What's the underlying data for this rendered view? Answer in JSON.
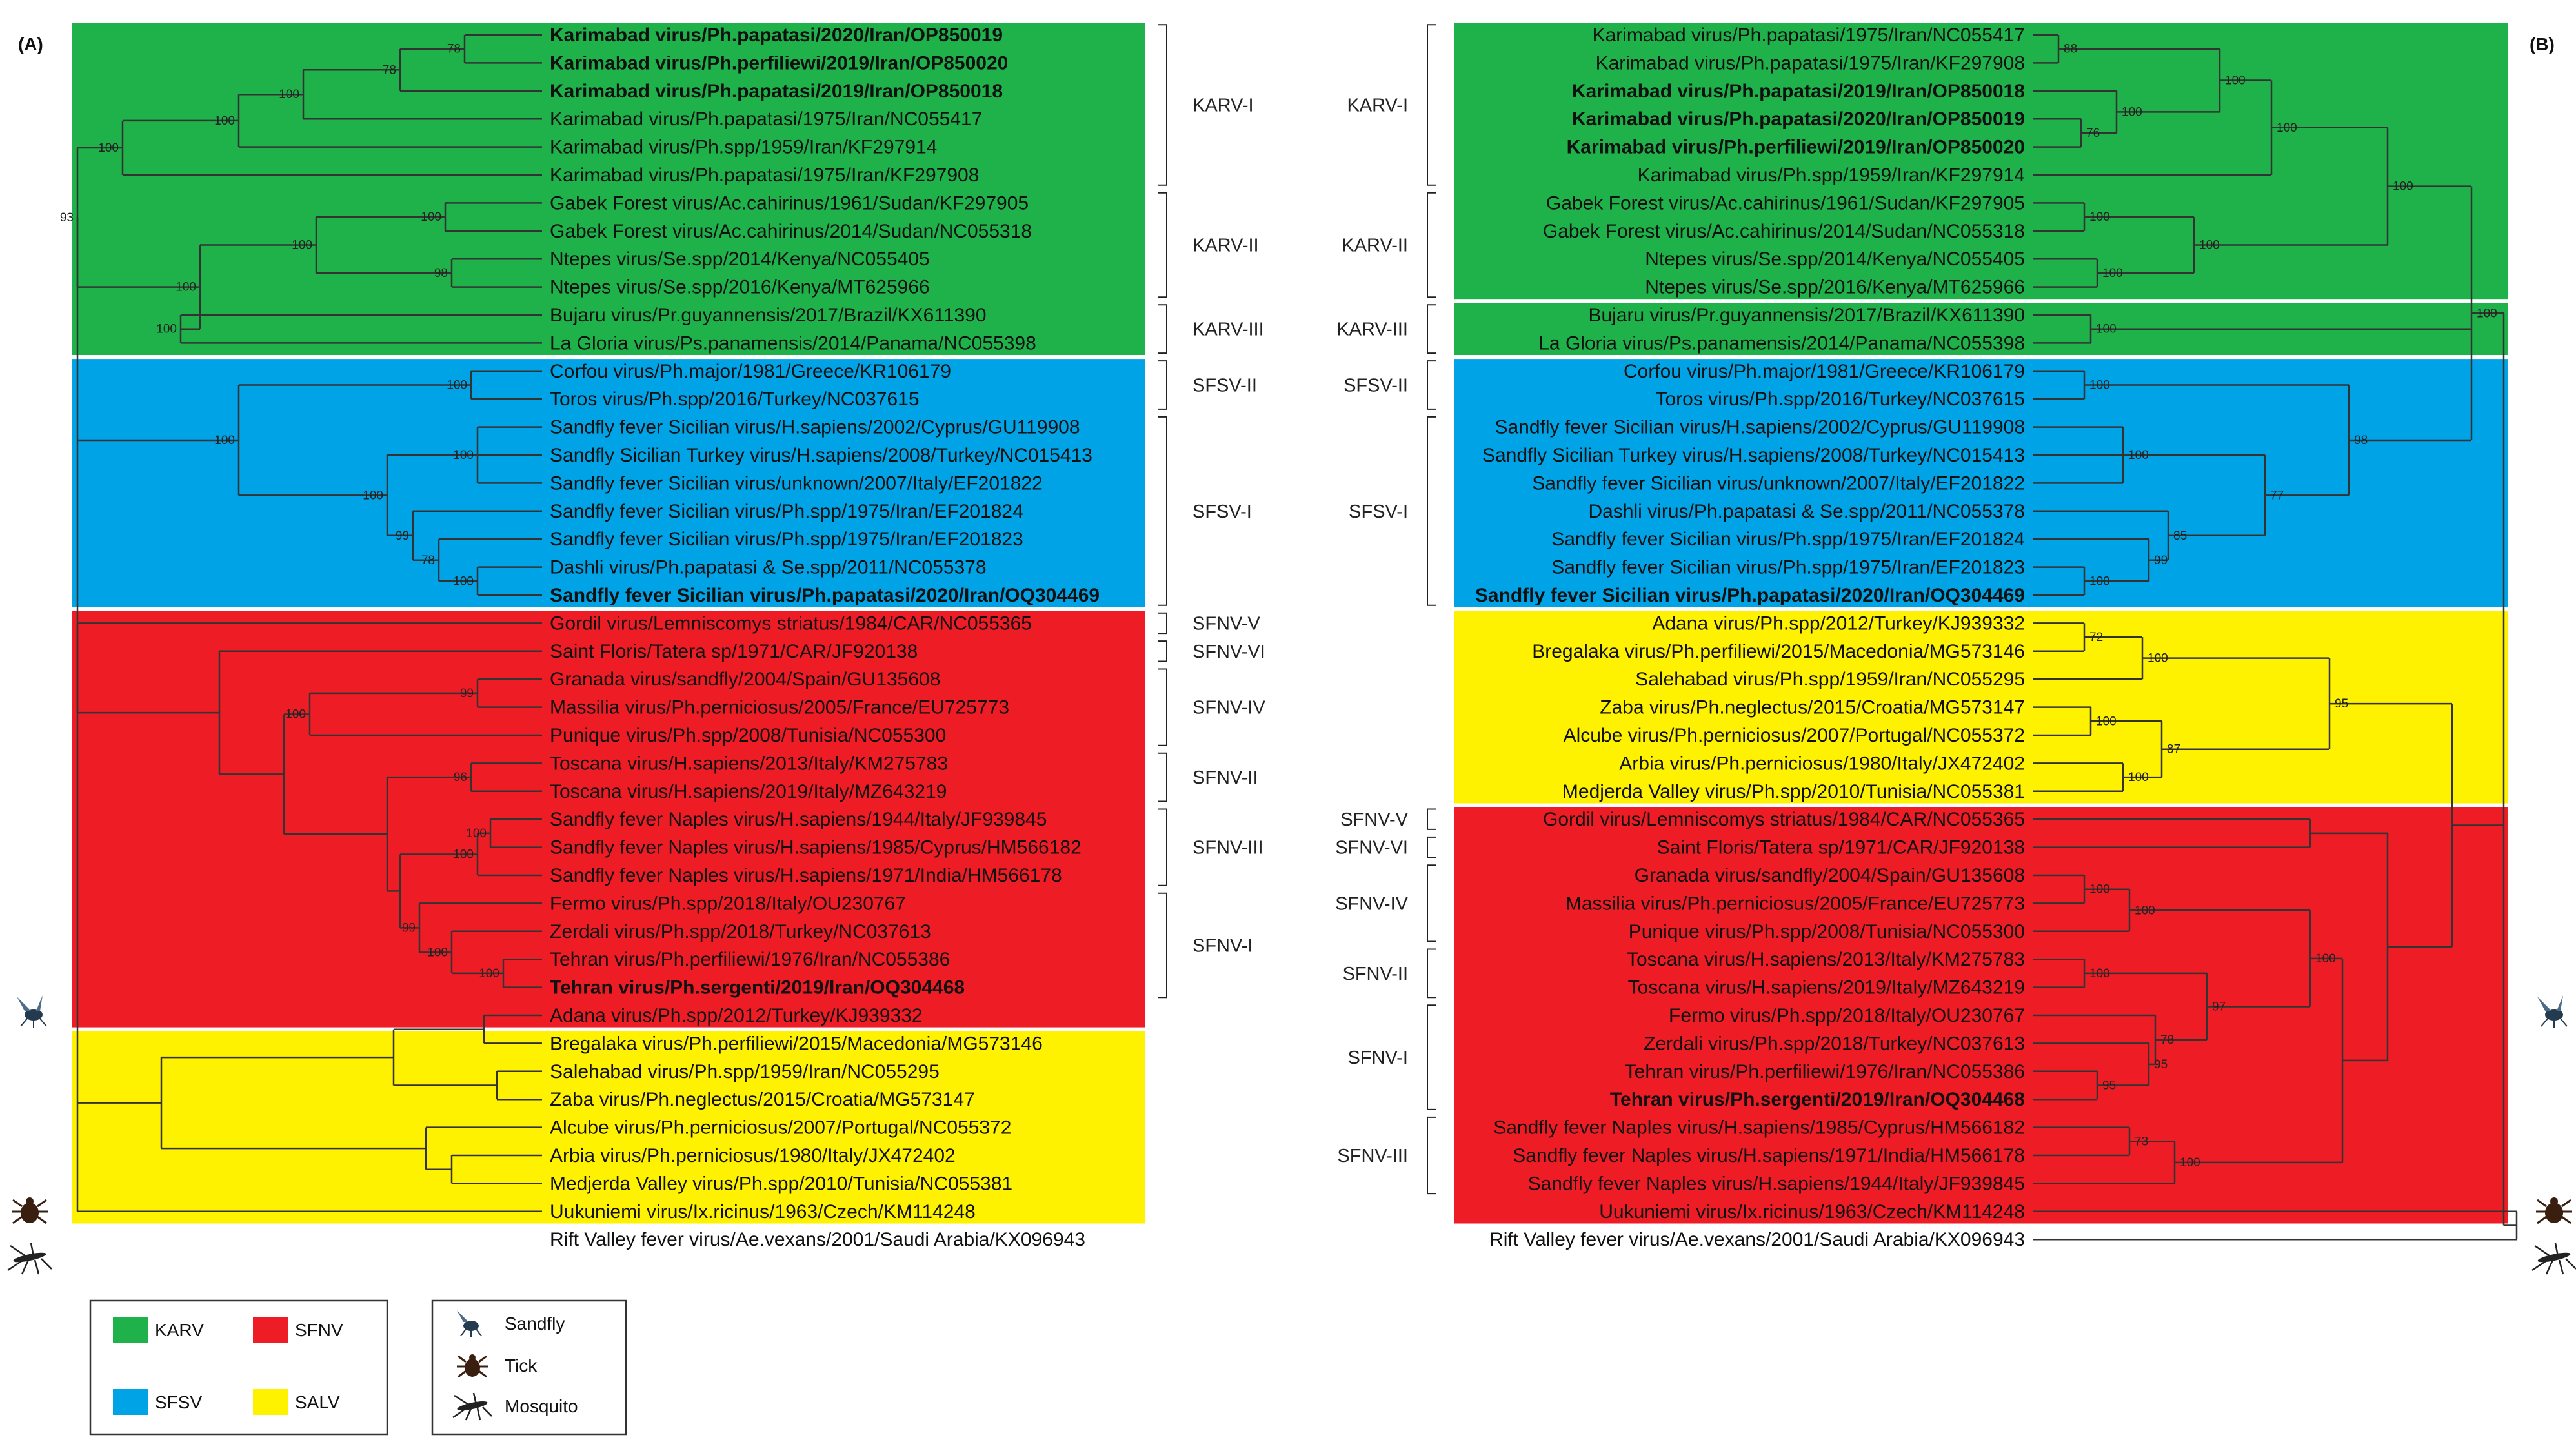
{
  "panels": [
    {
      "id": "A",
      "label": "(A)",
      "groups": [
        {
          "color": "#1fb24a",
          "from": 0,
          "to": 11
        },
        {
          "color": "#00a3e6",
          "from": 12,
          "to": 20
        },
        {
          "color": "#ee1c25",
          "from": 21,
          "to": 35
        },
        {
          "color": "#fff200",
          "from": 36,
          "to": 42
        }
      ],
      "clades": [
        {
          "label": "KARV-I",
          "from": 0,
          "to": 5
        },
        {
          "label": "KARV-II",
          "from": 6,
          "to": 9
        },
        {
          "label": "KARV-III",
          "from": 10,
          "to": 11
        },
        {
          "label": "SFSV-II",
          "from": 12,
          "to": 13
        },
        {
          "label": "SFSV-I",
          "from": 14,
          "to": 20
        },
        {
          "label": "SFNV-V",
          "from": 21,
          "to": 21
        },
        {
          "label": "SFNV-VI",
          "from": 22,
          "to": 22
        },
        {
          "label": "SFNV-IV",
          "from": 23,
          "to": 25
        },
        {
          "label": "SFNV-II",
          "from": 26,
          "to": 27
        },
        {
          "label": "SFNV-III",
          "from": 28,
          "to": 30
        },
        {
          "label": "SFNV-I",
          "from": 31,
          "to": 34
        }
      ],
      "taxa": [
        {
          "name": "Karimabad virus/Ph.papatasi/2020/Iran/OP850019",
          "bold": true
        },
        {
          "name": "Karimabad virus/Ph.perfiliewi/2019/Iran/OP850020",
          "bold": true
        },
        {
          "name": "Karimabad virus/Ph.papatasi/2019/Iran/OP850018",
          "bold": true
        },
        {
          "name": "Karimabad virus/Ph.papatasi/1975/Iran/NC055417",
          "bold": false
        },
        {
          "name": "Karimabad virus/Ph.spp/1959/Iran/KF297914",
          "bold": false
        },
        {
          "name": "Karimabad virus/Ph.papatasi/1975/Iran/KF297908",
          "bold": false
        },
        {
          "name": "Gabek Forest virus/Ac.cahirinus/1961/Sudan/KF297905",
          "bold": false
        },
        {
          "name": "Gabek Forest virus/Ac.cahirinus/2014/Sudan/NC055318",
          "bold": false
        },
        {
          "name": "Ntepes virus/Se.spp/2014/Kenya/NC055405",
          "bold": false
        },
        {
          "name": "Ntepes virus/Se.spp/2016/Kenya/MT625966",
          "bold": false
        },
        {
          "name": "Bujaru virus/Pr.guyannensis/2017/Brazil/KX611390",
          "bold": false
        },
        {
          "name": "La Gloria virus/Ps.panamensis/2014/Panama/NC055398",
          "bold": false
        },
        {
          "name": "Corfou virus/Ph.major/1981/Greece/KR106179",
          "bold": false
        },
        {
          "name": "Toros virus/Ph.spp/2016/Turkey/NC037615",
          "bold": false
        },
        {
          "name": "Sandfly fever Sicilian virus/H.sapiens/2002/Cyprus/GU119908",
          "bold": false
        },
        {
          "name": "Sandfly Sicilian Turkey virus/H.sapiens/2008/Turkey/NC015413",
          "bold": false
        },
        {
          "name": "Sandfly fever Sicilian virus/unknown/2007/Italy/EF201822",
          "bold": false
        },
        {
          "name": "Sandfly fever Sicilian virus/Ph.spp/1975/Iran/EF201824",
          "bold": false
        },
        {
          "name": "Sandfly fever Sicilian virus/Ph.spp/1975/Iran/EF201823",
          "bold": false
        },
        {
          "name": "Dashli virus/Ph.papatasi & Se.spp/2011/NC055378",
          "bold": false
        },
        {
          "name": "Sandfly fever Sicilian virus/Ph.papatasi/2020/Iran/OQ304469",
          "bold": true
        },
        {
          "name": "Gordil virus/Lemniscomys striatus/1984/CAR/NC055365",
          "bold": false
        },
        {
          "name": "Saint Floris/Tatera sp/1971/CAR/JF920138",
          "bold": false
        },
        {
          "name": "Granada virus/sandfly/2004/Spain/GU135608",
          "bold": false
        },
        {
          "name": "Massilia virus/Ph.perniciosus/2005/France/EU725773",
          "bold": false
        },
        {
          "name": "Punique virus/Ph.spp/2008/Tunisia/NC055300",
          "bold": false
        },
        {
          "name": "Toscana virus/H.sapiens/2013/Italy/KM275783",
          "bold": false
        },
        {
          "name": "Toscana virus/H.sapiens/2019/Italy/MZ643219",
          "bold": false
        },
        {
          "name": "Sandfly fever Naples virus/H.sapiens/1944/Italy/JF939845",
          "bold": false
        },
        {
          "name": "Sandfly fever Naples virus/H.sapiens/1985/Cyprus/HM566182",
          "bold": false
        },
        {
          "name": "Sandfly fever Naples virus/H.sapiens/1971/India/HM566178",
          "bold": false
        },
        {
          "name": "Fermo virus/Ph.spp/2018/Italy/OU230767",
          "bold": false
        },
        {
          "name": "Zerdali virus/Ph.spp/2018/Turkey/NC037613",
          "bold": false
        },
        {
          "name": "Tehran virus/Ph.perfiliewi/1976/Iran/NC055386",
          "bold": false
        },
        {
          "name": "Tehran virus/Ph.sergenti/2019/Iran/OQ304468",
          "bold": true
        },
        {
          "name": "Adana virus/Ph.spp/2012/Turkey/KJ939332",
          "bold": false
        },
        {
          "name": "Bregalaka virus/Ph.perfiliewi/2015/Macedonia/MG573146",
          "bold": false
        },
        {
          "name": "Salehabad virus/Ph.spp/1959/Iran/NC055295",
          "bold": false
        },
        {
          "name": "Zaba virus/Ph.neglectus/2015/Croatia/MG573147",
          "bold": false
        },
        {
          "name": "Alcube virus/Ph.perniciosus/2007/Portugal/NC055372",
          "bold": false
        },
        {
          "name": "Arbia virus/Ph.perniciosus/1980/Italy/JX472402",
          "bold": false
        },
        {
          "name": "Medjerda Valley virus/Ph.spp/2010/Tunisia/NC055381",
          "bold": false
        },
        {
          "name": "Uukuniemi virus/Ix.ricinus/1963/Czech/KM114248",
          "bold": false
        },
        {
          "name": "Rift Valley fever virus/Ae.vexans/2001/Saudi Arabia/KX096943",
          "bold": false
        }
      ],
      "bootstrap": [
        "78",
        "78",
        "100",
        "100",
        "100",
        "100",
        "98",
        "100",
        "100",
        "100",
        "93",
        "100",
        "100",
        "100",
        "78",
        "99",
        "100",
        "100",
        "99",
        "100",
        "96",
        "100",
        "100",
        "100",
        "100",
        "99"
      ]
    },
    {
      "id": "B",
      "label": "(B)",
      "groups": [
        {
          "color": "#1fb24a",
          "from": 0,
          "to": 9
        },
        {
          "color": "#1fb24a",
          "from": 10,
          "to": 11
        },
        {
          "color": "#00a3e6",
          "from": 12,
          "to": 20
        },
        {
          "color": "#fff200",
          "from": 21,
          "to": 27
        },
        {
          "color": "#ee1c25",
          "from": 28,
          "to": 42
        }
      ],
      "clades": [
        {
          "label": "KARV-I",
          "from": 0,
          "to": 5
        },
        {
          "label": "KARV-II",
          "from": 6,
          "to": 9
        },
        {
          "label": "KARV-III",
          "from": 10,
          "to": 11
        },
        {
          "label": "SFSV-II",
          "from": 12,
          "to": 13
        },
        {
          "label": "SFSV-I",
          "from": 14,
          "to": 20
        },
        {
          "label": "SFNV-V",
          "from": 28,
          "to": 28
        },
        {
          "label": "SFNV-VI",
          "from": 29,
          "to": 29
        },
        {
          "label": "SFNV-IV",
          "from": 30,
          "to": 32
        },
        {
          "label": "SFNV-II",
          "from": 33,
          "to": 34
        },
        {
          "label": "SFNV-I",
          "from": 35,
          "to": 38
        },
        {
          "label": "SFNV-III",
          "from": 39,
          "to": 41
        }
      ],
      "taxa": [
        {
          "name": "Karimabad virus/Ph.papatasi/1975/Iran/NC055417",
          "bold": false
        },
        {
          "name": "Karimabad virus/Ph.papatasi/1975/Iran/KF297908",
          "bold": false
        },
        {
          "name": "Karimabad virus/Ph.papatasi/2019/Iran/OP850018",
          "bold": true
        },
        {
          "name": "Karimabad virus/Ph.papatasi/2020/Iran/OP850019",
          "bold": true
        },
        {
          "name": "Karimabad virus/Ph.perfiliewi/2019/Iran/OP850020",
          "bold": true
        },
        {
          "name": "Karimabad virus/Ph.spp/1959/Iran/KF297914",
          "bold": false
        },
        {
          "name": "Gabek Forest virus/Ac.cahirinus/1961/Sudan/KF297905",
          "bold": false
        },
        {
          "name": "Gabek Forest virus/Ac.cahirinus/2014/Sudan/NC055318",
          "bold": false
        },
        {
          "name": "Ntepes virus/Se.spp/2014/Kenya/NC055405",
          "bold": false
        },
        {
          "name": "Ntepes virus/Se.spp/2016/Kenya/MT625966",
          "bold": false
        },
        {
          "name": "Bujaru virus/Pr.guyannensis/2017/Brazil/KX611390",
          "bold": false
        },
        {
          "name": "La Gloria virus/Ps.panamensis/2014/Panama/NC055398",
          "bold": false
        },
        {
          "name": "Corfou virus/Ph.major/1981/Greece/KR106179",
          "bold": false
        },
        {
          "name": "Toros virus/Ph.spp/2016/Turkey/NC037615",
          "bold": false
        },
        {
          "name": "Sandfly fever Sicilian virus/H.sapiens/2002/Cyprus/GU119908",
          "bold": false
        },
        {
          "name": "Sandfly Sicilian Turkey virus/H.sapiens/2008/Turkey/NC015413",
          "bold": false
        },
        {
          "name": "Sandfly fever Sicilian virus/unknown/2007/Italy/EF201822",
          "bold": false
        },
        {
          "name": "Dashli virus/Ph.papatasi & Se.spp/2011/NC055378",
          "bold": false
        },
        {
          "name": "Sandfly fever Sicilian virus/Ph.spp/1975/Iran/EF201824",
          "bold": false
        },
        {
          "name": "Sandfly fever Sicilian virus/Ph.spp/1975/Iran/EF201823",
          "bold": false
        },
        {
          "name": "Sandfly fever Sicilian virus/Ph.papatasi/2020/Iran/OQ304469",
          "bold": true
        },
        {
          "name": "Adana virus/Ph.spp/2012/Turkey/KJ939332",
          "bold": false
        },
        {
          "name": "Bregalaka virus/Ph.perfiliewi/2015/Macedonia/MG573146",
          "bold": false
        },
        {
          "name": "Salehabad virus/Ph.spp/1959/Iran/NC055295",
          "bold": false
        },
        {
          "name": "Zaba virus/Ph.neglectus/2015/Croatia/MG573147",
          "bold": false
        },
        {
          "name": "Alcube virus/Ph.perniciosus/2007/Portugal/NC055372",
          "bold": false
        },
        {
          "name": "Arbia virus/Ph.perniciosus/1980/Italy/JX472402",
          "bold": false
        },
        {
          "name": "Medjerda Valley virus/Ph.spp/2010/Tunisia/NC055381",
          "bold": false
        },
        {
          "name": "Gordil virus/Lemniscomys striatus/1984/CAR/NC055365",
          "bold": false
        },
        {
          "name": "Saint Floris/Tatera sp/1971/CAR/JF920138",
          "bold": false
        },
        {
          "name": "Granada virus/sandfly/2004/Spain/GU135608",
          "bold": false
        },
        {
          "name": "Massilia virus/Ph.perniciosus/2005/France/EU725773",
          "bold": false
        },
        {
          "name": "Punique virus/Ph.spp/2008/Tunisia/NC055300",
          "bold": false
        },
        {
          "name": "Toscana virus/H.sapiens/2013/Italy/KM275783",
          "bold": false
        },
        {
          "name": "Toscana virus/H.sapiens/2019/Italy/MZ643219",
          "bold": false
        },
        {
          "name": "Fermo virus/Ph.spp/2018/Italy/OU230767",
          "bold": false
        },
        {
          "name": "Zerdali virus/Ph.spp/2018/Turkey/NC037613",
          "bold": false
        },
        {
          "name": "Tehran virus/Ph.perfiliewi/1976/Iran/NC055386",
          "bold": false
        },
        {
          "name": "Tehran virus/Ph.sergenti/2019/Iran/OQ304468",
          "bold": true
        },
        {
          "name": "Sandfly fever Naples virus/H.sapiens/1985/Cyprus/HM566182",
          "bold": false
        },
        {
          "name": "Sandfly fever Naples virus/H.sapiens/1971/India/HM566178",
          "bold": false
        },
        {
          "name": "Sandfly fever Naples virus/H.sapiens/1944/Italy/JF939845",
          "bold": false
        },
        {
          "name": "Uukuniemi virus/Ix.ricinus/1963/Czech/KM114248",
          "bold": false
        },
        {
          "name": "Rift Valley fever virus/Ae.vexans/2001/Saudi Arabia/KX096943",
          "bold": false
        }
      ],
      "bootstrap": [
        "88",
        "76",
        "100",
        "100",
        "100",
        "100",
        "100",
        "100",
        "100",
        "100",
        "100",
        "100",
        "100",
        "99",
        "85",
        "77",
        "98",
        "100",
        "72",
        "100",
        "100",
        "100",
        "87",
        "95",
        "100",
        "100",
        "100",
        "95",
        "95",
        "78",
        "97",
        "100",
        "73",
        "100"
      ]
    }
  ],
  "legend": {
    "groups": [
      {
        "label": "KARV",
        "color": "#1fb24a"
      },
      {
        "label": "SFNV",
        "color": "#ee1c25"
      },
      {
        "label": "SFSV",
        "color": "#00a3e6"
      },
      {
        "label": "SALV",
        "color": "#fff200"
      }
    ],
    "vectors": [
      {
        "label": "Sandfly",
        "icon": "sandfly-icon"
      },
      {
        "label": "Tick",
        "icon": "tick-icon"
      },
      {
        "label": "Mosquito",
        "icon": "mosquito-icon"
      }
    ]
  }
}
